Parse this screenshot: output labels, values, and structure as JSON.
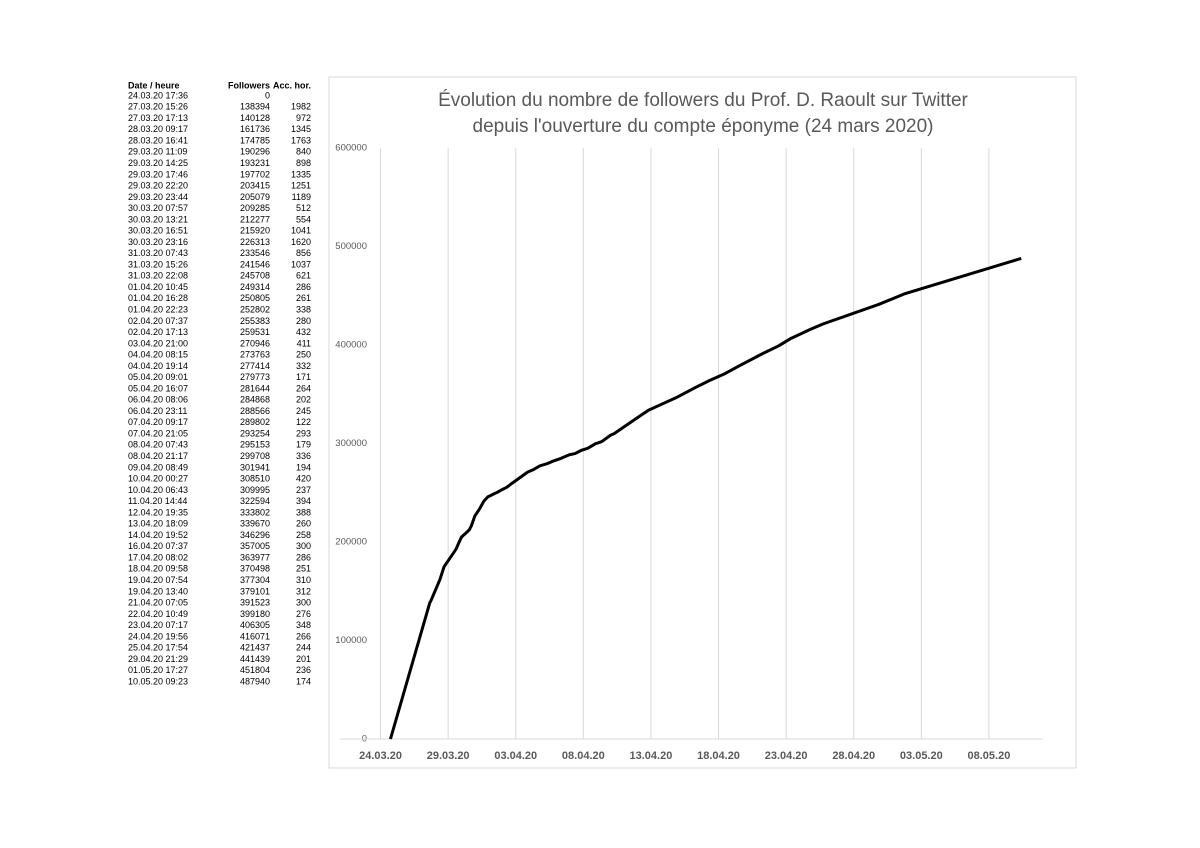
{
  "table": {
    "headers": [
      "Date / heure",
      "Followers",
      "Acc. hor."
    ],
    "acc_hor": [
      null,
      1982,
      972,
      1345,
      1763,
      840,
      898,
      1335,
      1251,
      1189,
      512,
      554,
      1041,
      1620,
      856,
      1037,
      621,
      286,
      261,
      338,
      280,
      432,
      411,
      250,
      332,
      171,
      264,
      202,
      245,
      122,
      293,
      179,
      336,
      194,
      420,
      237,
      394,
      388,
      260,
      258,
      300,
      286,
      251,
      310,
      312,
      300,
      276,
      348,
      266,
      244,
      201,
      236,
      174
    ]
  },
  "chart_data": {
    "type": "line",
    "title": [
      "Évolution du nombre de followers du Prof. D. Raoult sur Twitter",
      "depuis l'ouverture du compte éponyme (24 mars 2020)"
    ],
    "x": [
      "24.03.20 17:36",
      "27.03.20 15:26",
      "27.03.20 17:13",
      "28.03.20 09:17",
      "28.03.20 16:41",
      "29.03.20 11:09",
      "29.03.20 14:25",
      "29.03.20 17:46",
      "29.03.20 22:20",
      "29.03.20 23:44",
      "30.03.20 07:57",
      "30.03.20 13:21",
      "30.03.20 16:51",
      "30.03.20 23:16",
      "31.03.20 07:43",
      "31.03.20 15:26",
      "31.03.20 22:08",
      "01.04.20 10:45",
      "01.04.20 16:28",
      "01.04.20 22:23",
      "02.04.20 07:37",
      "02.04.20 17:13",
      "03.04.20 21:00",
      "04.04.20 08:15",
      "04.04.20 19:14",
      "05.04.20 09:01",
      "05.04.20 16:07",
      "06.04.20 08:06",
      "06.04.20 23:11",
      "07.04.20 09:17",
      "07.04.20 21:05",
      "08.04.20 07:43",
      "08.04.20 21:17",
      "09.04.20 08:49",
      "10.04.20 00:27",
      "10.04.20 06:43",
      "11.04.20 14:44",
      "12.04.20 19:35",
      "13.04.20 18:09",
      "14.04.20 19:52",
      "16.04.20 07:37",
      "17.04.20 08:02",
      "18.04.20 09:58",
      "19.04.20 07:54",
      "19.04.20 13:40",
      "21.04.20 07:05",
      "22.04.20 10:49",
      "23.04.20 07:17",
      "24.04.20 19:56",
      "25.04.20 17:54",
      "29.04.20 21:29",
      "01.05.20 17:27",
      "10.05.20 09:23"
    ],
    "series": [
      {
        "name": "Followers",
        "color": "#000000",
        "values": [
          0,
          138394,
          140128,
          161736,
          174785,
          190296,
          193231,
          197702,
          203415,
          205079,
          209285,
          212277,
          215920,
          226313,
          233546,
          241546,
          245708,
          249314,
          250805,
          252802,
          255383,
          259531,
          270946,
          273763,
          277414,
          279773,
          281644,
          284868,
          288566,
          289802,
          293254,
          295153,
          299708,
          301941,
          308510,
          309995,
          322594,
          333802,
          339670,
          346296,
          357005,
          363977,
          370498,
          377304,
          379101,
          391523,
          399180,
          406305,
          416071,
          421437,
          441439,
          451804,
          487940
        ]
      }
    ],
    "xlim": [
      "21.03.20",
      "12.05.20"
    ],
    "xticks": [
      "24.03.20",
      "29.03.20",
      "03.04.20",
      "08.04.20",
      "13.04.20",
      "18.04.20",
      "23.04.20",
      "28.04.20",
      "03.05.20",
      "08.05.20"
    ],
    "ylim": [
      0,
      600000
    ],
    "yticks": [
      0,
      100000,
      200000,
      300000,
      400000,
      500000,
      600000
    ],
    "grid": true
  }
}
